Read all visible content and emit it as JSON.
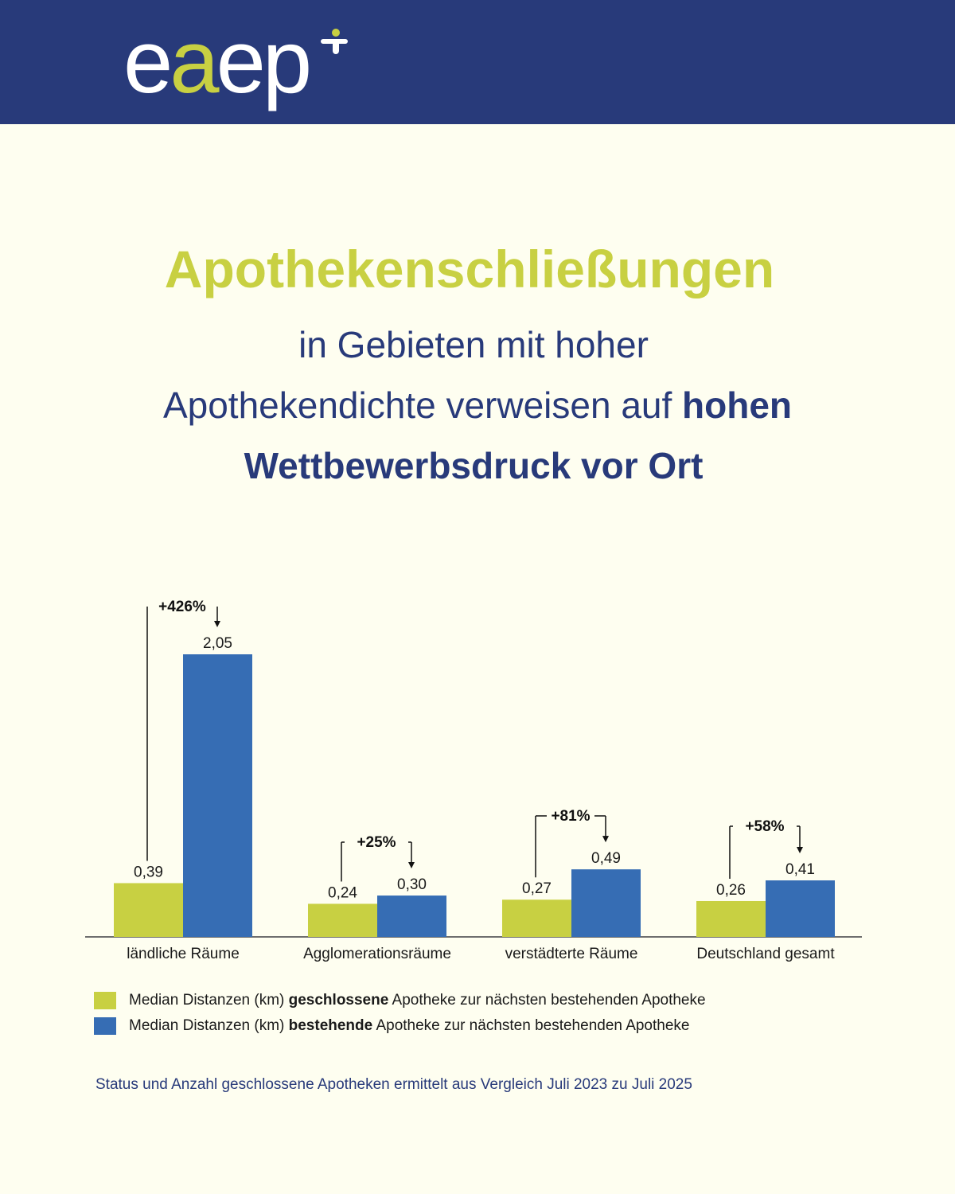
{
  "logo": {
    "text_prefix": "e",
    "text_accent": "a",
    "text_suffix": "ep",
    "accent_color": "#c8d042"
  },
  "title": {
    "main": "Apothekenschließungen",
    "line1": "in Gebieten mit hoher",
    "line2_regular": "Apothekendichte verweisen auf ",
    "line2_bold": "hohen",
    "line3": "Wettbewerbsdruck vor Ort"
  },
  "colors": {
    "navy": "#283a7a",
    "green": "#c8d042",
    "blue": "#366db4",
    "background": "#fefef0"
  },
  "chart_data": {
    "type": "bar",
    "categories": [
      "ländliche Räume",
      "Agglomerationsräume",
      "verstädterte Räume",
      "Deutschland gesamt"
    ],
    "series": [
      {
        "name": "Median Distanzen (km) geschlossene Apotheke zur nächsten bestehenden Apotheke",
        "color": "#c8d042",
        "values": [
          0.39,
          0.24,
          0.27,
          0.26
        ],
        "labels": [
          "0,39",
          "0,24",
          "0,27",
          "0,26"
        ]
      },
      {
        "name": "Median Distanzen (km) bestehende Apotheke zur nächsten bestehenden Apotheke",
        "color": "#366db4",
        "values": [
          2.05,
          0.3,
          0.49,
          0.41
        ],
        "labels": [
          "2,05",
          "0,30",
          "0,49",
          "0,41"
        ]
      }
    ],
    "annotations": [
      "+426%",
      "+25%",
      "+81%",
      "+58%"
    ],
    "ylim": [
      0,
      2.05
    ],
    "xlabel": "",
    "ylabel": "",
    "grid": false,
    "legend_position": "bottom-left"
  },
  "legend": [
    {
      "prefix": "Median Distanzen (km) ",
      "bold": "geschlossene",
      "suffix": " Apotheke zur nächsten bestehenden Apotheke"
    },
    {
      "prefix": "Median Distanzen (km) ",
      "bold": "bestehende",
      "suffix": " Apotheke zur nächsten bestehenden Apotheke"
    }
  ],
  "footnote": "Status und Anzahl geschlossene Apotheken ermittelt aus Vergleich Juli 2023 zu Juli 2025"
}
